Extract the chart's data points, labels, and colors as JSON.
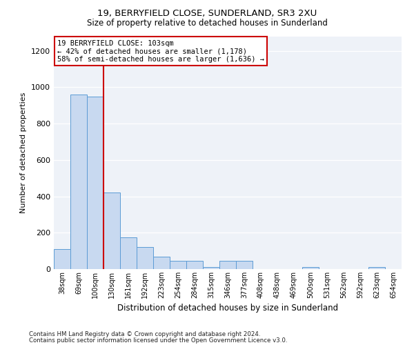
{
  "title1": "19, BERRYFIELD CLOSE, SUNDERLAND, SR3 2XU",
  "title2": "Size of property relative to detached houses in Sunderland",
  "xlabel": "Distribution of detached houses by size in Sunderland",
  "ylabel": "Number of detached properties",
  "categories": [
    "38sqm",
    "69sqm",
    "100sqm",
    "130sqm",
    "161sqm",
    "192sqm",
    "223sqm",
    "254sqm",
    "284sqm",
    "315sqm",
    "346sqm",
    "377sqm",
    "408sqm",
    "438sqm",
    "469sqm",
    "500sqm",
    "531sqm",
    "562sqm",
    "592sqm",
    "623sqm",
    "654sqm"
  ],
  "values": [
    110,
    960,
    950,
    420,
    175,
    120,
    70,
    45,
    45,
    10,
    45,
    45,
    0,
    0,
    0,
    10,
    0,
    0,
    0,
    10,
    0
  ],
  "bar_color": "#c8d9f0",
  "bar_edge_color": "#5b9bd5",
  "vline_color": "#cc0000",
  "vline_index": 2,
  "annotation_text": "19 BERRYFIELD CLOSE: 103sqm\n← 42% of detached houses are smaller (1,178)\n58% of semi-detached houses are larger (1,636) →",
  "annotation_box_color": "#ffffff",
  "annotation_box_edge": "#cc0000",
  "footer1": "Contains HM Land Registry data © Crown copyright and database right 2024.",
  "footer2": "Contains public sector information licensed under the Open Government Licence v3.0.",
  "background_color": "#eef2f8",
  "ylim": [
    0,
    1280
  ],
  "yticks": [
    0,
    200,
    400,
    600,
    800,
    1000,
    1200
  ]
}
